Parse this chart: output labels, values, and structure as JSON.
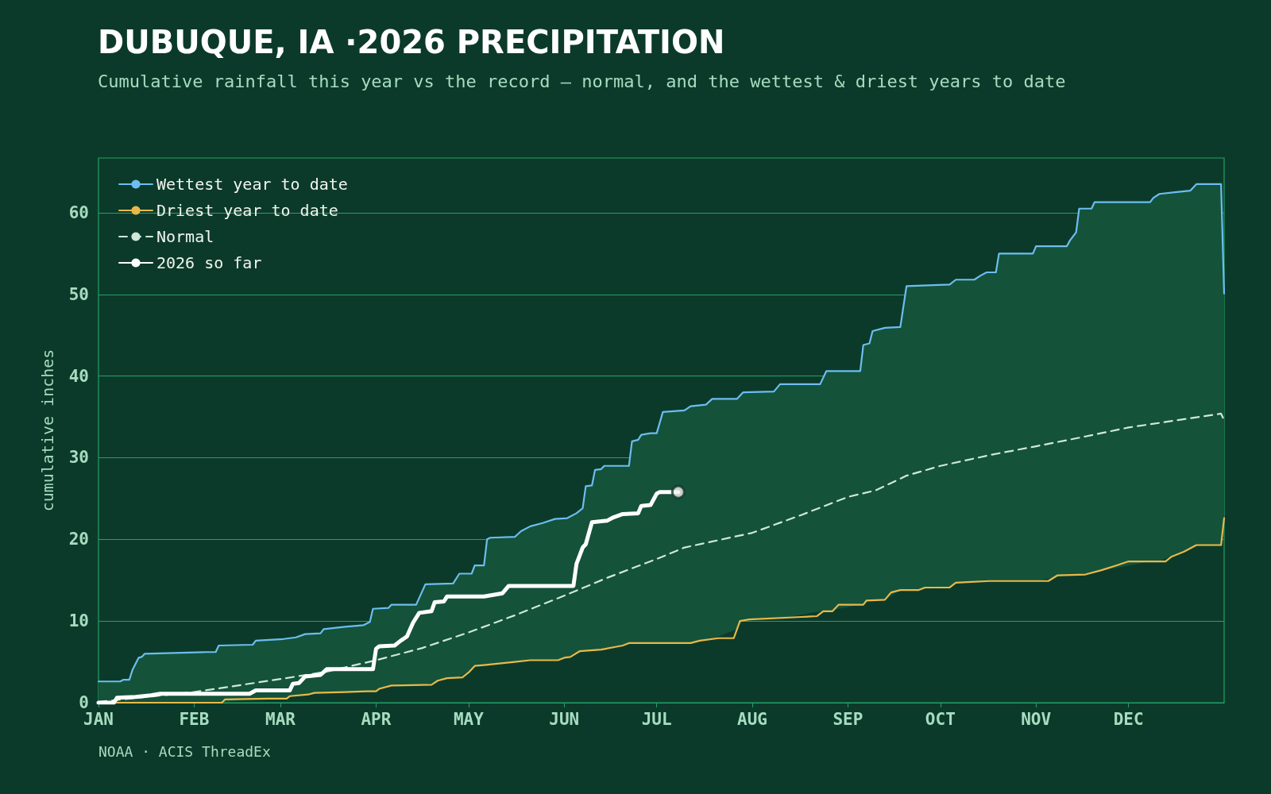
{
  "chart_data": {
    "type": "line",
    "title": "DUBUQUE, IA ·2026 PRECIPITATION",
    "subtitle": "Cumulative rainfall this year vs the record — normal, and the wettest & driest years to date",
    "ylabel": "cumulative inches",
    "annotations": [
      "NOAA · ACIS ThreadEx"
    ],
    "xlim": [
      "2026-01-01",
      "2027-01-01"
    ],
    "xticks": [
      {
        "value": "2026-01-01",
        "label": "JAN"
      },
      {
        "value": "2026-02-01",
        "label": "FEB"
      },
      {
        "value": "2026-03-01",
        "label": "MAR"
      },
      {
        "value": "2026-04-01",
        "label": "APR"
      },
      {
        "value": "2026-05-01",
        "label": "MAY"
      },
      {
        "value": "2026-06-01",
        "label": "JUN"
      },
      {
        "value": "2026-07-01",
        "label": "JUL"
      },
      {
        "value": "2026-08-01",
        "label": "AUG"
      },
      {
        "value": "2026-09-01",
        "label": "SEP"
      },
      {
        "value": "2026-10-01",
        "label": "OCT"
      },
      {
        "value": "2026-11-01",
        "label": "NOV"
      },
      {
        "value": "2026-12-01",
        "label": "DEC"
      }
    ],
    "ylim": [
      0,
      66.7
    ],
    "yticks": [
      0,
      10,
      20,
      30,
      40,
      50,
      60
    ],
    "grid": "y",
    "legend": "top left",
    "series": [
      {
        "name": "Wettest year to date",
        "color": "#6cbdf0",
        "x": [
          "2026-01-01",
          "2026-01-08",
          "2026-01-09",
          "2026-01-11",
          "2026-01-12",
          "2026-01-14",
          "2026-01-15",
          "2026-01-16",
          "2026-02-05",
          "2026-02-08",
          "2026-02-09",
          "2026-02-20",
          "2026-02-21",
          "2026-03-02",
          "2026-03-06",
          "2026-03-09",
          "2026-03-14",
          "2026-03-15",
          "2026-03-22",
          "2026-03-28",
          "2026-03-30",
          "2026-03-31",
          "2026-04-05",
          "2026-04-06",
          "2026-04-14",
          "2026-04-17",
          "2026-04-26",
          "2026-04-28",
          "2026-05-02",
          "2026-05-03",
          "2026-05-06",
          "2026-05-07",
          "2026-05-08",
          "2026-05-16",
          "2026-05-18",
          "2026-05-21",
          "2026-05-25",
          "2026-05-29",
          "2026-06-02",
          "2026-06-05",
          "2026-06-07",
          "2026-06-08",
          "2026-06-10",
          "2026-06-11",
          "2026-06-13",
          "2026-06-14",
          "2026-06-22",
          "2026-06-23",
          "2026-06-25",
          "2026-06-26",
          "2026-06-29",
          "2026-07-01",
          "2026-07-03",
          "2026-07-10",
          "2026-07-12",
          "2026-07-17",
          "2026-07-19",
          "2026-07-27",
          "2026-07-29",
          "2026-08-08",
          "2026-08-10",
          "2026-08-23",
          "2026-08-25",
          "2026-09-05",
          "2026-09-06",
          "2026-09-08",
          "2026-09-09",
          "2026-09-13",
          "2026-09-18",
          "2026-09-20",
          "2026-10-04",
          "2026-10-06",
          "2026-10-12",
          "2026-10-14",
          "2026-10-16",
          "2026-10-19",
          "2026-10-20",
          "2026-10-31",
          "2026-11-01",
          "2026-11-11",
          "2026-11-12",
          "2026-11-14",
          "2026-11-15",
          "2026-11-19",
          "2026-11-20",
          "2026-12-08",
          "2026-12-09",
          "2026-12-11",
          "2026-12-16",
          "2026-12-21",
          "2026-12-23",
          "2026-12-31",
          "2027-01-01"
        ],
        "values": [
          2.6,
          2.6,
          2.8,
          2.8,
          4.0,
          5.5,
          5.6,
          6.0,
          6.2,
          6.2,
          7.0,
          7.1,
          7.6,
          7.8,
          8.0,
          8.4,
          8.5,
          9.0,
          9.3,
          9.5,
          9.9,
          11.5,
          11.6,
          12.0,
          12.0,
          14.5,
          14.6,
          15.8,
          15.8,
          16.8,
          16.8,
          20.0,
          20.2,
          20.3,
          21.0,
          21.6,
          22.0,
          22.5,
          22.6,
          23.2,
          23.8,
          26.5,
          26.6,
          28.5,
          28.6,
          29.0,
          29.0,
          32.0,
          32.2,
          32.8,
          33.0,
          33.0,
          35.6,
          35.8,
          36.3,
          36.5,
          37.2,
          37.2,
          38.0,
          38.1,
          39.0,
          39.0,
          40.6,
          40.6,
          43.8,
          44.0,
          45.5,
          45.9,
          46.0,
          51.0,
          51.2,
          51.8,
          51.8,
          52.3,
          52.7,
          52.7,
          55.0,
          55.0,
          55.9,
          55.9,
          56.6,
          57.6,
          60.5,
          60.5,
          61.3,
          61.3,
          61.8,
          62.3,
          62.5,
          62.7,
          63.5,
          63.5,
          50.1
        ],
        "lower": [
          0,
          0,
          0,
          0,
          0,
          0,
          0,
          0,
          0,
          0,
          0,
          0.5,
          0.5,
          0.5,
          0.9,
          1.0,
          1.2,
          1.2,
          1.3,
          1.4,
          1.4,
          1.4,
          2.0,
          2.1,
          2.2,
          2.2,
          3.1,
          3.1,
          4.1,
          4.5,
          4.6,
          4.6,
          4.7,
          5.0,
          5.1,
          5.2,
          5.2,
          5.2,
          5.6,
          6.1,
          6.3,
          6.3,
          6.4,
          6.4,
          6.5,
          6.6,
          7.3,
          7.3,
          7.3,
          7.3,
          7.3,
          7.3,
          7.3,
          7.3,
          7.3,
          7.7,
          7.8,
          9.0,
          10.1,
          10.3,
          10.3,
          11.2,
          11.2,
          12.0,
          12.0,
          12.5,
          12.5,
          12.6,
          13.8,
          13.8,
          14.1,
          14.7,
          14.8,
          14.8,
          14.9,
          14.9,
          14.9,
          14.9,
          14.9,
          15.6,
          15.6,
          15.6,
          15.7,
          15.9,
          16.0,
          17.3,
          17.3,
          17.3,
          18.2,
          18.9,
          19.3,
          19.3,
          22.6
        ],
        "upper": [
          2.6,
          2.6,
          2.8,
          2.8,
          4.0,
          5.5,
          5.6,
          6.0,
          6.2,
          6.2,
          7.0,
          7.1,
          7.6,
          7.8,
          8.0,
          8.4,
          8.5,
          9.0,
          9.3,
          9.5,
          9.9,
          11.5,
          11.6,
          12.0,
          12.0,
          14.5,
          14.6,
          15.8,
          15.8,
          16.8,
          16.8,
          20.0,
          20.2,
          20.3,
          21.0,
          21.6,
          22.0,
          22.5,
          22.6,
          23.2,
          23.8,
          26.5,
          26.6,
          28.5,
          28.6,
          29.0,
          29.0,
          32.0,
          32.2,
          32.8,
          33.0,
          33.0,
          35.6,
          35.8,
          36.3,
          36.5,
          37.2,
          37.2,
          38.0,
          38.1,
          39.0,
          39.0,
          40.6,
          40.6,
          43.8,
          44.0,
          45.5,
          45.9,
          46.0,
          51.0,
          51.2,
          51.8,
          51.8,
          52.3,
          52.7,
          52.7,
          55.0,
          55.0,
          55.9,
          55.9,
          56.6,
          57.6,
          60.5,
          60.5,
          61.3,
          61.3,
          61.8,
          62.3,
          62.5,
          62.7,
          63.5,
          63.5,
          50.1
        ]
      },
      {
        "name": "Driest year to date",
        "color": "#e8b94a",
        "x": [
          "2026-01-01",
          "2026-02-10",
          "2026-02-11",
          "2026-02-25",
          "2026-03-03",
          "2026-03-04",
          "2026-03-10",
          "2026-03-12",
          "2026-03-22",
          "2026-03-29",
          "2026-04-01",
          "2026-04-02",
          "2026-04-06",
          "2026-04-19",
          "2026-04-21",
          "2026-04-24",
          "2026-04-29",
          "2026-05-01",
          "2026-05-03",
          "2026-05-06",
          "2026-05-11",
          "2026-05-16",
          "2026-05-21",
          "2026-05-30",
          "2026-06-01",
          "2026-06-03",
          "2026-06-06",
          "2026-06-13",
          "2026-06-20",
          "2026-06-22",
          "2026-07-12",
          "2026-07-15",
          "2026-07-21",
          "2026-07-26",
          "2026-07-28",
          "2026-07-31",
          "2026-08-17",
          "2026-08-22",
          "2026-08-24",
          "2026-08-27",
          "2026-08-29",
          "2026-09-06",
          "2026-09-07",
          "2026-09-13",
          "2026-09-15",
          "2026-09-18",
          "2026-09-24",
          "2026-09-26",
          "2026-10-04",
          "2026-10-06",
          "2026-10-11",
          "2026-10-17",
          "2026-11-05",
          "2026-11-08",
          "2026-11-17",
          "2026-11-22",
          "2026-11-27",
          "2026-12-01",
          "2026-12-13",
          "2026-12-15",
          "2026-12-19",
          "2026-12-23",
          "2026-12-31",
          "2027-01-01"
        ],
        "values": [
          0,
          0,
          0.4,
          0.5,
          0.5,
          0.8,
          1.0,
          1.2,
          1.3,
          1.4,
          1.4,
          1.7,
          2.1,
          2.2,
          2.7,
          3.0,
          3.1,
          3.7,
          4.5,
          4.6,
          4.8,
          5.0,
          5.2,
          5.2,
          5.5,
          5.6,
          6.3,
          6.5,
          7.0,
          7.3,
          7.3,
          7.6,
          7.9,
          7.9,
          10.0,
          10.2,
          10.5,
          10.6,
          11.2,
          11.2,
          12.0,
          12.0,
          12.5,
          12.6,
          13.5,
          13.8,
          13.8,
          14.1,
          14.1,
          14.7,
          14.8,
          14.9,
          14.9,
          15.6,
          15.7,
          16.2,
          16.8,
          17.3,
          17.3,
          17.9,
          18.5,
          19.3,
          19.3,
          22.6
        ]
      },
      {
        "name": "Normal",
        "color": "#cfe8d8",
        "line_style": "dashed",
        "x": [
          "2026-01-01",
          "2026-02-01",
          "2026-03-01",
          "2026-03-16",
          "2026-04-01",
          "2026-04-16",
          "2026-05-01",
          "2026-05-16",
          "2026-06-01",
          "2026-06-15",
          "2026-07-01",
          "2026-07-10",
          "2026-08-01",
          "2026-08-17",
          "2026-09-01",
          "2026-09-10",
          "2026-09-20",
          "2026-10-01",
          "2026-10-18",
          "2026-11-01",
          "2026-11-17",
          "2026-12-01",
          "2026-12-17",
          "2026-12-31",
          "2027-01-01"
        ],
        "values": [
          0.1,
          1.3,
          2.9,
          3.8,
          5.2,
          6.7,
          8.6,
          10.7,
          13.1,
          15.3,
          17.6,
          19.0,
          20.8,
          23.0,
          25.2,
          26.0,
          27.8,
          29.0,
          30.4,
          31.4,
          32.6,
          33.7,
          34.6,
          35.4,
          34.6
        ]
      },
      {
        "name": "2026 so far",
        "color": "#ffffff",
        "x": [
          "2026-01-01",
          "2026-01-06",
          "2026-01-07",
          "2026-01-13",
          "2026-01-18",
          "2026-01-21",
          "2026-02-19",
          "2026-02-21",
          "2026-03-04",
          "2026-03-05",
          "2026-03-07",
          "2026-03-09",
          "2026-03-14",
          "2026-03-16",
          "2026-03-31",
          "2026-04-01",
          "2026-04-02",
          "2026-04-07",
          "2026-04-09",
          "2026-04-11",
          "2026-04-13",
          "2026-04-15",
          "2026-04-19",
          "2026-04-20",
          "2026-04-23",
          "2026-04-24",
          "2026-05-06",
          "2026-05-12",
          "2026-05-14",
          "2026-06-04",
          "2026-06-05",
          "2026-06-07",
          "2026-06-08",
          "2026-06-10",
          "2026-06-15",
          "2026-06-17",
          "2026-06-20",
          "2026-06-25",
          "2026-06-26",
          "2026-06-29",
          "2026-07-01",
          "2026-07-02",
          "2026-07-08"
        ],
        "values": [
          0,
          0,
          0.6,
          0.7,
          0.9,
          1.1,
          1.1,
          1.5,
          1.5,
          2.3,
          2.4,
          3.2,
          3.4,
          4.1,
          4.1,
          6.6,
          6.9,
          7.0,
          7.6,
          8.1,
          9.8,
          11.0,
          11.2,
          12.3,
          12.4,
          13.0,
          13.0,
          13.4,
          14.3,
          14.3,
          17.0,
          19.0,
          19.4,
          22.1,
          22.3,
          22.7,
          23.1,
          23.2,
          24.1,
          24.2,
          25.6,
          25.8,
          25.8
        ]
      },
      {
        "type": "scatter",
        "color": "#f2f2ee",
        "marker": "circle",
        "x": [
          "2026-07-08"
        ],
        "values": [
          25.8
        ]
      }
    ]
  }
}
